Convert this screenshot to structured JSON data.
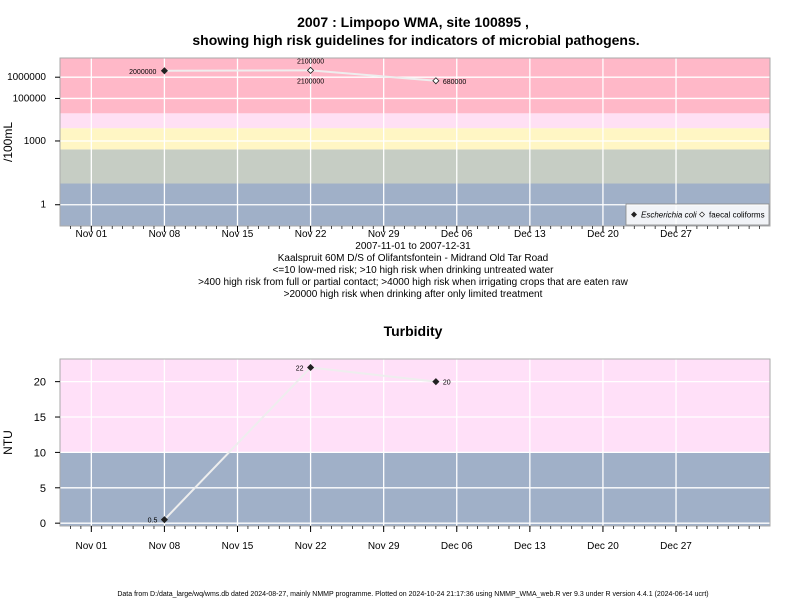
{
  "page": {
    "title_line1": "2007 : Limpopo WMA, site 100895 ,",
    "title_line2": "showing high risk guidelines for indicators of microbial pathogens.",
    "subtitle": [
      "2007-11-01 to 2007-12-31",
      "Kaalspruit 60M D/S of Olifantsfontein - Midrand Old Tar Road",
      "<=10 low-med risk; >10 high risk when drinking untreated water",
      ">400 high risk from full or partial contact; >4000 high risk when irrigating crops that are eaten raw",
      ">20000 high risk when drinking after only limited treatment"
    ],
    "footer": "Data from D:/data_large/wq/wms.db dated 2024-08-27, mainly NMMP programme. Plotted on 2024-10-24 21:17:36 using NMMP_WMA_web.R ver 9.3 under R version 4.4.1 (2024-06-14 ucrt)"
  },
  "chart_data": [
    {
      "type": "line",
      "ylabel": "/100mL",
      "yscale": "log",
      "xlim": [
        "2007-10-29",
        "2008-01-05"
      ],
      "ylim": [
        0.1,
        8000000
      ],
      "grid": true,
      "x_ticks": [
        "Nov 01",
        "Nov 08",
        "Nov 15",
        "Nov 22",
        "Nov 29",
        "Dec 06",
        "Dec 13",
        "Dec 20",
        "Dec 27"
      ],
      "x_tick_dates": [
        "2007-11-01",
        "2007-11-08",
        "2007-11-15",
        "2007-11-22",
        "2007-11-29",
        "2007-12-06",
        "2007-12-13",
        "2007-12-20",
        "2007-12-27"
      ],
      "y_ticks": [
        1,
        1000,
        100000,
        1000000
      ],
      "y_tick_labels": [
        "1",
        "1000",
        "100000",
        "1000000"
      ],
      "bands": [
        {
          "from": 0.1,
          "to": 10,
          "color": "#a0b0c8"
        },
        {
          "from": 10,
          "to": 400,
          "color": "#c6cdc4"
        },
        {
          "from": 400,
          "to": 4000,
          "color": "#fff6c4"
        },
        {
          "from": 4000,
          "to": 20000,
          "color": "#ffe0f4"
        },
        {
          "from": 20000,
          "to": 8000000,
          "color": "#ffb8c8"
        }
      ],
      "legend_position": "bottom-right",
      "legend": [
        {
          "label": "Escherichia coli",
          "marker": "filled-diamond"
        },
        {
          "label": "faecal coliforms",
          "marker": "open-diamond"
        }
      ],
      "series": [
        {
          "name": "Escherichia coli",
          "x": [
            "2007-11-08",
            "2007-11-22"
          ],
          "values": [
            2000000,
            2100000
          ],
          "labels": [
            "2000000",
            "2100000"
          ]
        },
        {
          "name": "faecal coliforms",
          "x": [
            "2007-11-22",
            "2007-12-04"
          ],
          "values": [
            2100000,
            680000
          ],
          "labels": [
            "2100000",
            "680000"
          ]
        }
      ]
    },
    {
      "type": "line",
      "title": "Turbidity",
      "ylabel": "NTU",
      "xlim": [
        "2007-10-29",
        "2008-01-05"
      ],
      "ylim": [
        -0.4,
        23.2
      ],
      "grid": true,
      "x_ticks": [
        "Nov 01",
        "Nov 08",
        "Nov 15",
        "Nov 22",
        "Nov 29",
        "Dec 06",
        "Dec 13",
        "Dec 20",
        "Dec 27"
      ],
      "x_tick_dates": [
        "2007-11-01",
        "2007-11-08",
        "2007-11-15",
        "2007-11-22",
        "2007-11-29",
        "2007-12-06",
        "2007-12-13",
        "2007-12-20",
        "2007-12-27"
      ],
      "y_ticks": [
        0,
        5,
        10,
        15,
        20
      ],
      "y_tick_labels": [
        "0",
        "5",
        "10",
        "15",
        "20"
      ],
      "bands": [
        {
          "from": -0.4,
          "to": 10,
          "color": "#a0b0c8"
        },
        {
          "from": 10,
          "to": 23.2,
          "color": "#ffe0f8"
        }
      ],
      "series": [
        {
          "x": [
            "2007-11-08",
            "2007-11-22",
            "2007-12-04"
          ],
          "values": [
            0.5,
            22,
            20
          ],
          "labels": [
            "0.5",
            "22",
            "20"
          ]
        }
      ]
    }
  ]
}
